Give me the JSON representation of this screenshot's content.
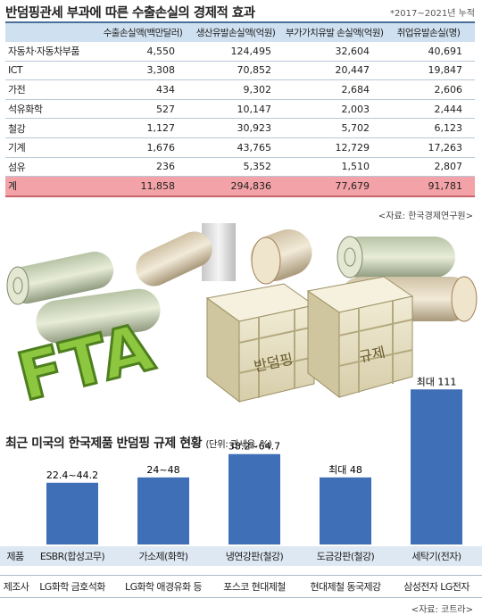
{
  "title1": "반덤핑관세 부과에 따른 수출손실의 경제적 효과",
  "note1": "*2017~2021년 누적",
  "table": {
    "headers": [
      "",
      "수출손실액(백만달러)",
      "생산유발손실액(억원)",
      "부가가치유발 손실액(억원)",
      "취업유발손실(명)"
    ],
    "rows": [
      [
        "자동차·자동차부품",
        "4,550",
        "124,495",
        "32,604",
        "40,691"
      ],
      [
        "ICT",
        "3,308",
        "70,852",
        "20,447",
        "19,847"
      ],
      [
        "가전",
        "434",
        "9,302",
        "2,684",
        "2,606"
      ],
      [
        "석유화학",
        "527",
        "10,147",
        "2,003",
        "2,444"
      ],
      [
        "철강",
        "1,127",
        "30,923",
        "5,702",
        "6,123"
      ],
      [
        "기계",
        "1,676",
        "43,765",
        "12,729",
        "17,263"
      ],
      [
        "섬유",
        "236",
        "5,352",
        "1,510",
        "2,807"
      ]
    ],
    "total": [
      "계",
      "11,858",
      "294,836",
      "77,679",
      "91,781"
    ]
  },
  "source1": "<자료: 한국경제연구원>",
  "illustration": {
    "fta_text": "FTA",
    "box1_label": "반덤핑",
    "box2_label": "규제"
  },
  "title2": "최근 미국의 한국제품 반덤핑 규제 현황",
  "title2_unit": "(단위: 관세율, %)",
  "row_labels": {
    "product": "제품",
    "maker": "제조사"
  },
  "chart_data": {
    "type": "bar",
    "title": "최근 미국의 한국제품 반덤핑 규제 현황",
    "unit": "관세율, %",
    "categories": [
      "ESBR(합성고무)",
      "가소제(화학)",
      "냉연강판(철강)",
      "도금강판(철강)",
      "세탁기(전자)"
    ],
    "makers": [
      "LG화학 금호석화",
      "LG화학 애경유화 등",
      "포스코 현대제철",
      "현대제철 동국제강",
      "삼성전자 LG전자"
    ],
    "values": [
      44.2,
      48,
      64.7,
      48,
      111
    ],
    "value_labels": [
      "22.4~44.2",
      "24~48",
      "38.2~64.7",
      "최대 48",
      "최대 111"
    ],
    "ylim": [
      0,
      115
    ],
    "bar_color": "#3f6fb6",
    "grid": false,
    "legend": "none"
  },
  "source2": "<자료: 코트라>",
  "colors": {
    "header_bg": "#cfe0f0",
    "total_bg": "#f3a2a7",
    "bar": "#3f6fb6",
    "fta_green": "#8dc63f",
    "crate": "#e9e2c6"
  }
}
